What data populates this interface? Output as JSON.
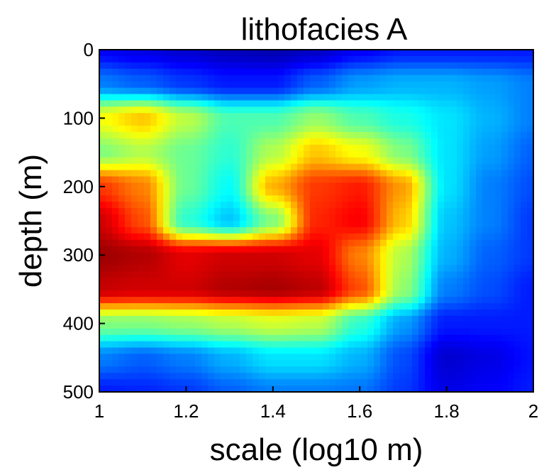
{
  "chart_data": {
    "type": "heatmap",
    "title": "lithofacies A",
    "xlabel": "scale (log10 m)",
    "ylabel": "depth (m)",
    "xlim": [
      1,
      2
    ],
    "ylim": [
      0,
      500
    ],
    "y_reversed": true,
    "colormap": "jet",
    "xticks": [
      1,
      1.2,
      1.4,
      1.6,
      1.8,
      2
    ],
    "xtick_labels": [
      "1",
      "1.2",
      "1.4",
      "1.6",
      "1.8",
      "2"
    ],
    "yticks": [
      0,
      100,
      200,
      300,
      400,
      500
    ],
    "ytick_labels": [
      "0",
      "100",
      "200",
      "300",
      "400",
      "500"
    ],
    "x": [
      1.0,
      1.1,
      1.2,
      1.3,
      1.4,
      1.5,
      1.6,
      1.7,
      1.8,
      1.9,
      2.0
    ],
    "y": [
      0,
      50,
      100,
      150,
      200,
      250,
      300,
      350,
      400,
      450,
      500
    ],
    "values": [
      [
        0.12,
        0.1,
        0.08,
        0.06,
        0.05,
        0.07,
        0.12,
        0.15,
        0.15,
        0.15,
        0.15
      ],
      [
        0.25,
        0.22,
        0.18,
        0.15,
        0.15,
        0.22,
        0.28,
        0.3,
        0.3,
        0.28,
        0.25
      ],
      [
        0.62,
        0.68,
        0.56,
        0.45,
        0.45,
        0.52,
        0.45,
        0.4,
        0.35,
        0.3,
        0.25
      ],
      [
        0.5,
        0.55,
        0.48,
        0.42,
        0.55,
        0.68,
        0.62,
        0.5,
        0.35,
        0.28,
        0.22
      ],
      [
        0.82,
        0.75,
        0.48,
        0.38,
        0.7,
        0.82,
        0.85,
        0.72,
        0.35,
        0.25,
        0.2
      ],
      [
        0.92,
        0.8,
        0.42,
        0.32,
        0.5,
        0.84,
        0.88,
        0.68,
        0.32,
        0.25,
        0.18
      ],
      [
        0.97,
        0.95,
        0.9,
        0.92,
        0.92,
        0.9,
        0.75,
        0.55,
        0.3,
        0.22,
        0.18
      ],
      [
        0.93,
        0.92,
        0.92,
        0.95,
        0.96,
        0.94,
        0.8,
        0.52,
        0.25,
        0.2,
        0.15
      ],
      [
        0.5,
        0.5,
        0.52,
        0.55,
        0.58,
        0.56,
        0.42,
        0.28,
        0.15,
        0.15,
        0.15
      ],
      [
        0.25,
        0.22,
        0.25,
        0.3,
        0.35,
        0.35,
        0.3,
        0.2,
        0.08,
        0.1,
        0.14
      ],
      [
        0.15,
        0.16,
        0.18,
        0.22,
        0.25,
        0.25,
        0.24,
        0.18,
        0.1,
        0.12,
        0.15
      ]
    ]
  }
}
